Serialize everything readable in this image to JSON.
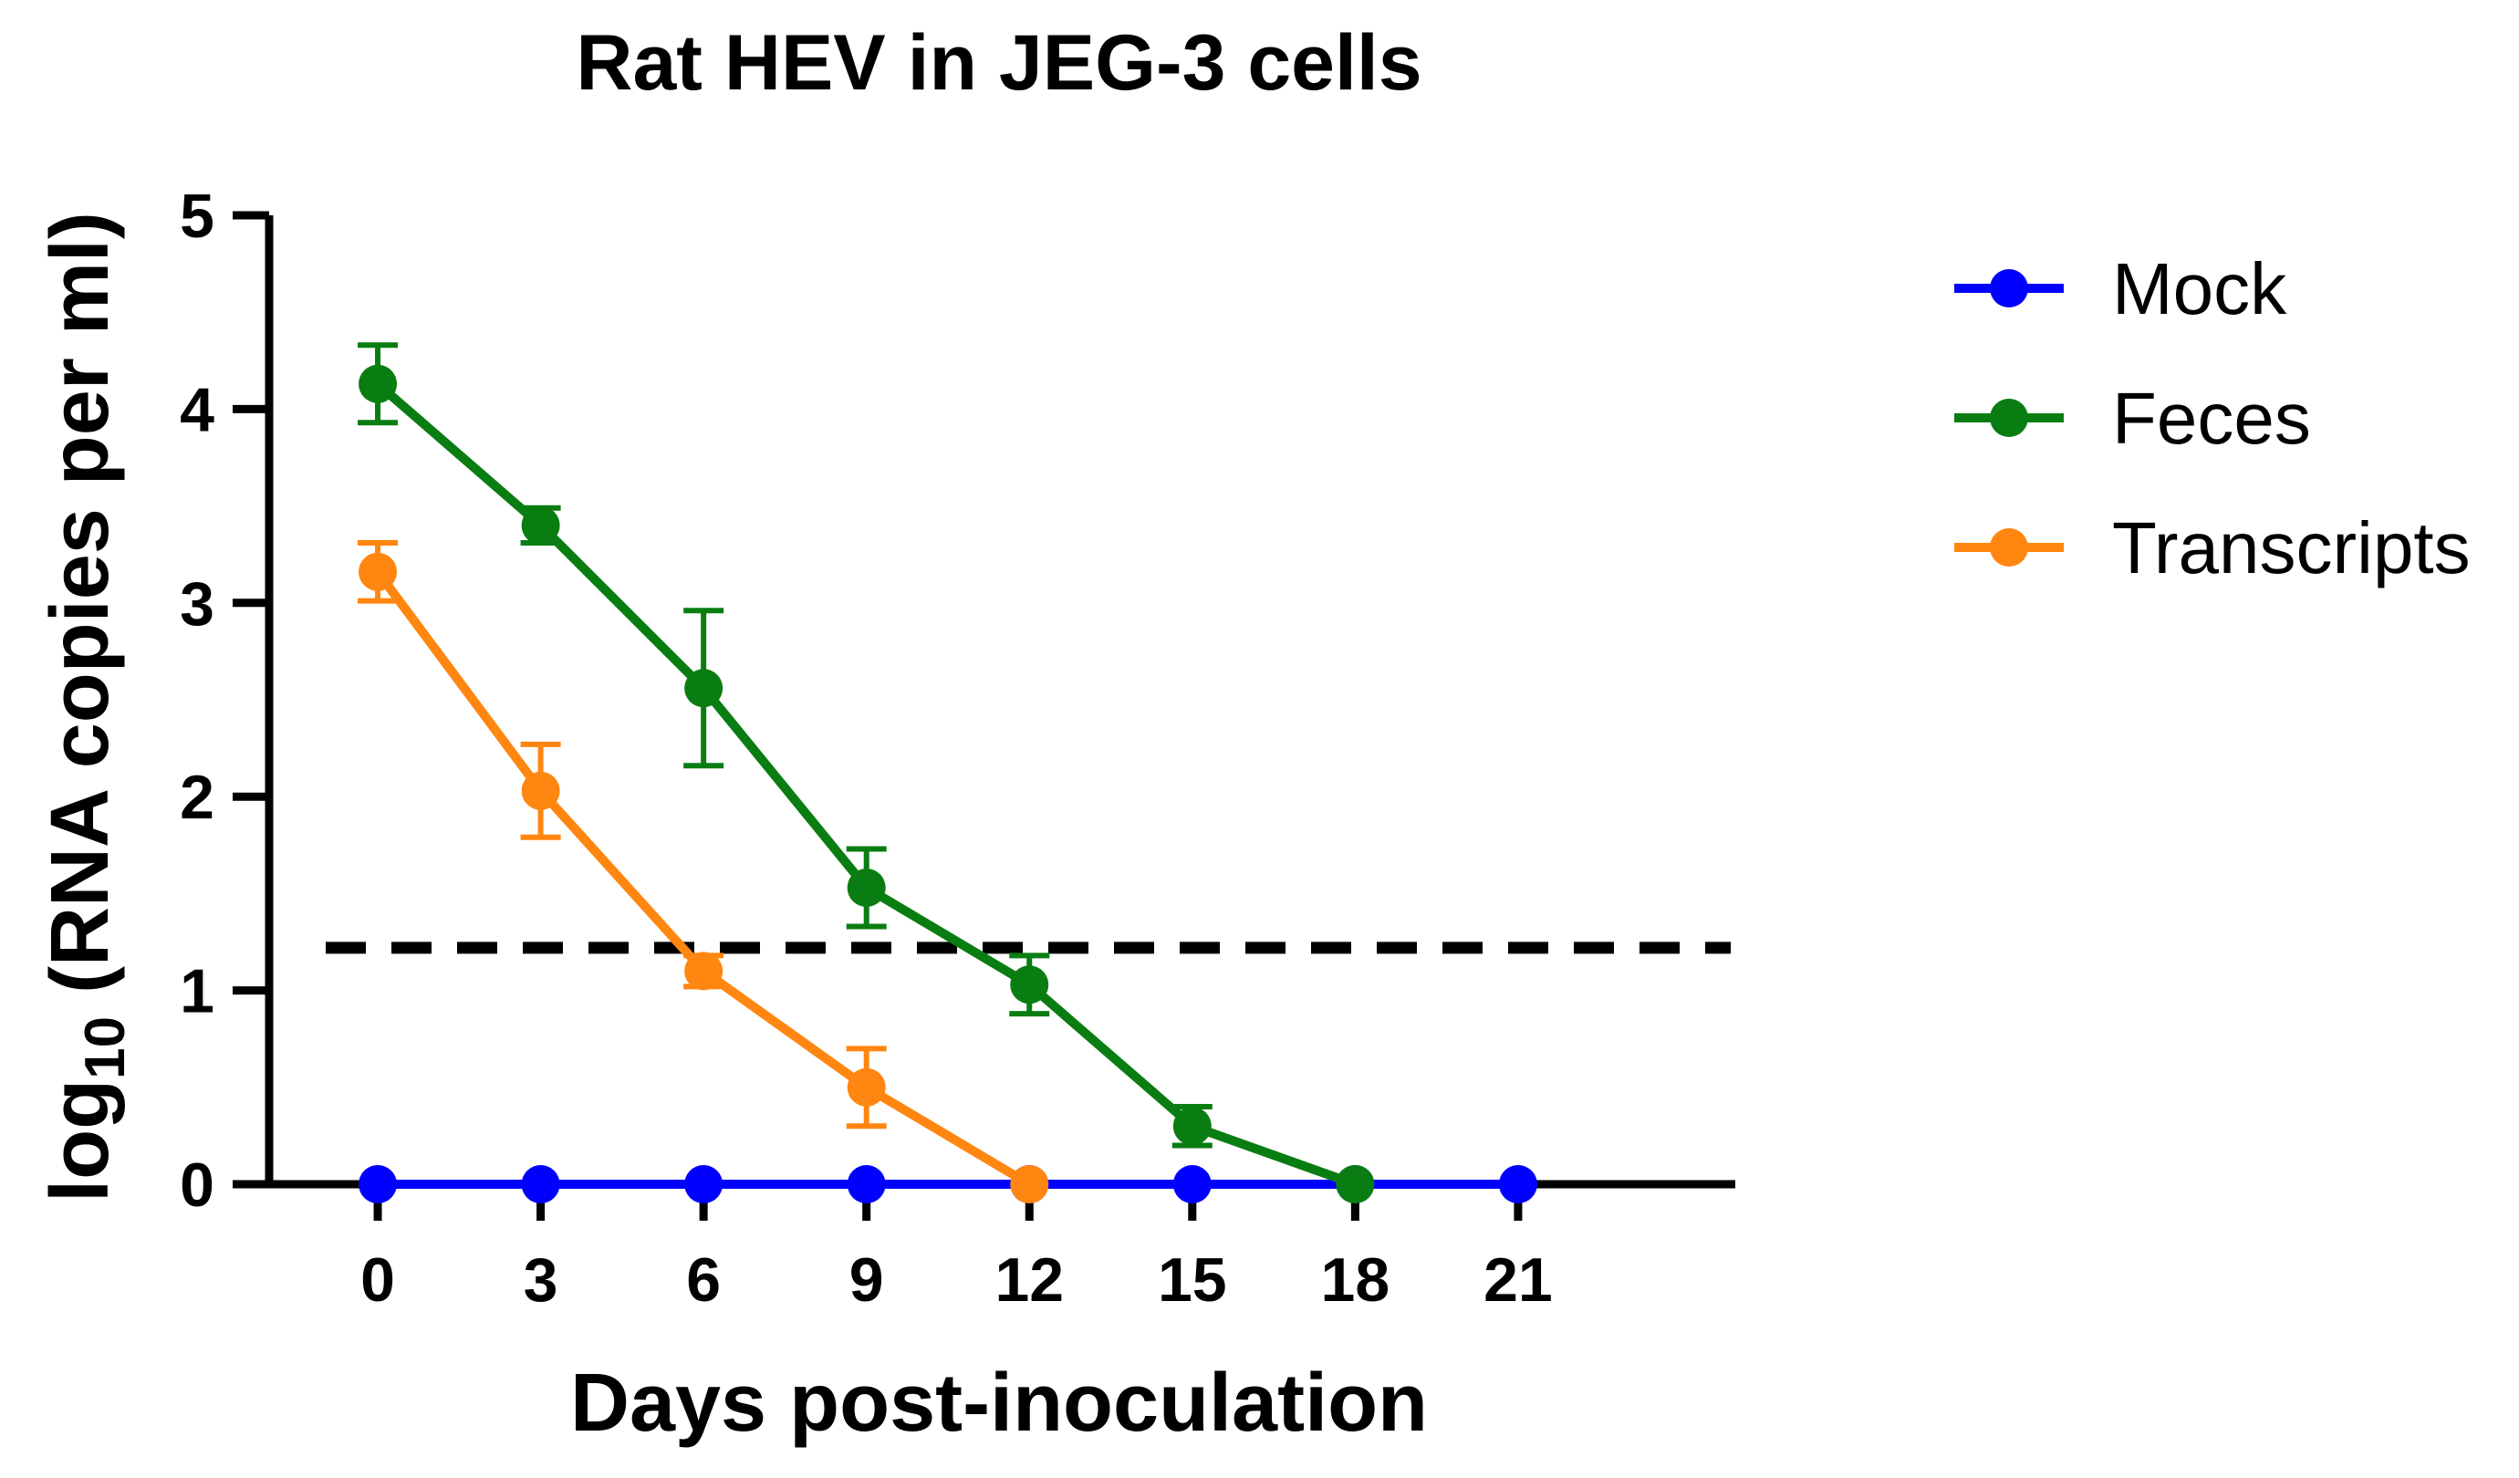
{
  "chart_data": {
    "type": "line",
    "title": "Rat HEV in JEG-3 cells",
    "xlabel": "Days post-inoculation",
    "ylabel": {
      "prefix": "log",
      "subscript": "10",
      "rest": " (RNA copies per ml)"
    },
    "x_ticks": [
      0,
      3,
      6,
      9,
      12,
      15,
      18,
      21
    ],
    "y_ticks": [
      0,
      1,
      2,
      3,
      4,
      5
    ],
    "xlim": [
      -2,
      25
    ],
    "ylim": [
      0,
      5
    ],
    "detection_limit": 1.22,
    "legend_position": "top-right",
    "series": [
      {
        "name": "Mock",
        "color": "#0000ff",
        "x": [
          0,
          3,
          6,
          9,
          12,
          15,
          18,
          21
        ],
        "y": [
          0,
          0,
          0,
          0,
          0,
          0,
          0,
          0
        ],
        "err": [
          0,
          0,
          0,
          0,
          0,
          0,
          0,
          0
        ]
      },
      {
        "name": "Feces",
        "color": "#0a7d12",
        "x": [
          0,
          3,
          6,
          9,
          12,
          15,
          18
        ],
        "y": [
          4.13,
          3.4,
          2.56,
          1.53,
          1.03,
          0.3,
          0
        ],
        "err": [
          0.2,
          0.09,
          0.4,
          0.2,
          0.15,
          0.1,
          0
        ]
      },
      {
        "name": "Transcripts",
        "color": "#ff8610",
        "x": [
          0,
          3,
          6,
          9,
          12
        ],
        "y": [
          3.16,
          2.03,
          1.1,
          0.5,
          0
        ],
        "err": [
          0.15,
          0.24,
          0.08,
          0.2,
          0
        ]
      }
    ]
  }
}
